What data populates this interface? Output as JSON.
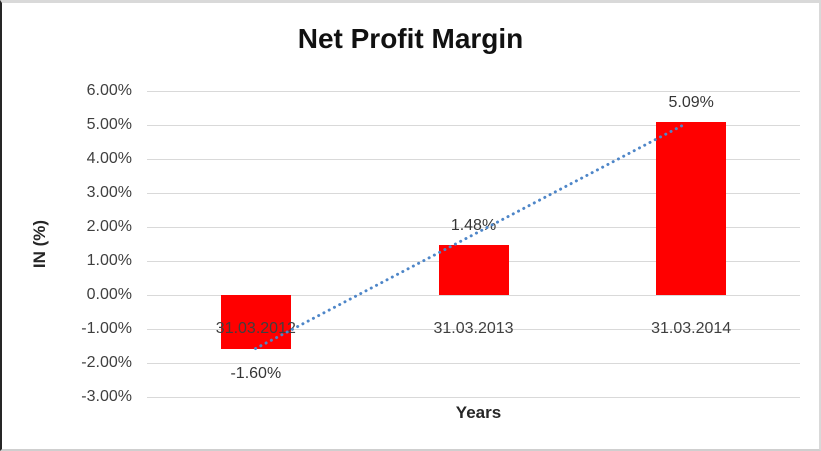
{
  "chart_data": {
    "type": "bar",
    "title": "Net Profit Margin",
    "xlabel": "Years",
    "ylabel": "IN (%)",
    "categories": [
      "31.03.2012",
      "31.03.2013",
      "31.03.2014"
    ],
    "values": [
      -1.6,
      1.48,
      5.09
    ],
    "data_labels": [
      "-1.60%",
      "1.48%",
      "5.09%"
    ],
    "y_ticks": [
      {
        "value": 6,
        "label": "6.00%"
      },
      {
        "value": 5,
        "label": "5.00%"
      },
      {
        "value": 4,
        "label": "4.00%"
      },
      {
        "value": 3,
        "label": "3.00%"
      },
      {
        "value": 2,
        "label": "2.00%"
      },
      {
        "value": 1,
        "label": "1.00%"
      },
      {
        "value": 0,
        "label": "0.00%"
      },
      {
        "value": -1,
        "label": "-1.00%"
      },
      {
        "value": -2,
        "label": "-2.00%"
      },
      {
        "value": -3,
        "label": "-3.00%"
      }
    ],
    "ylim": [
      -3,
      6
    ],
    "grid": true,
    "legend": "none",
    "colors": {
      "bar": "#ff0000",
      "gridline": "#d9d9d9",
      "tick_text": "#3f3f3f",
      "title_text": "#111111",
      "trendline": "#4e86c8"
    },
    "trendline": {
      "type": "linear",
      "style": "dotted",
      "color": "#4e86c8"
    }
  }
}
